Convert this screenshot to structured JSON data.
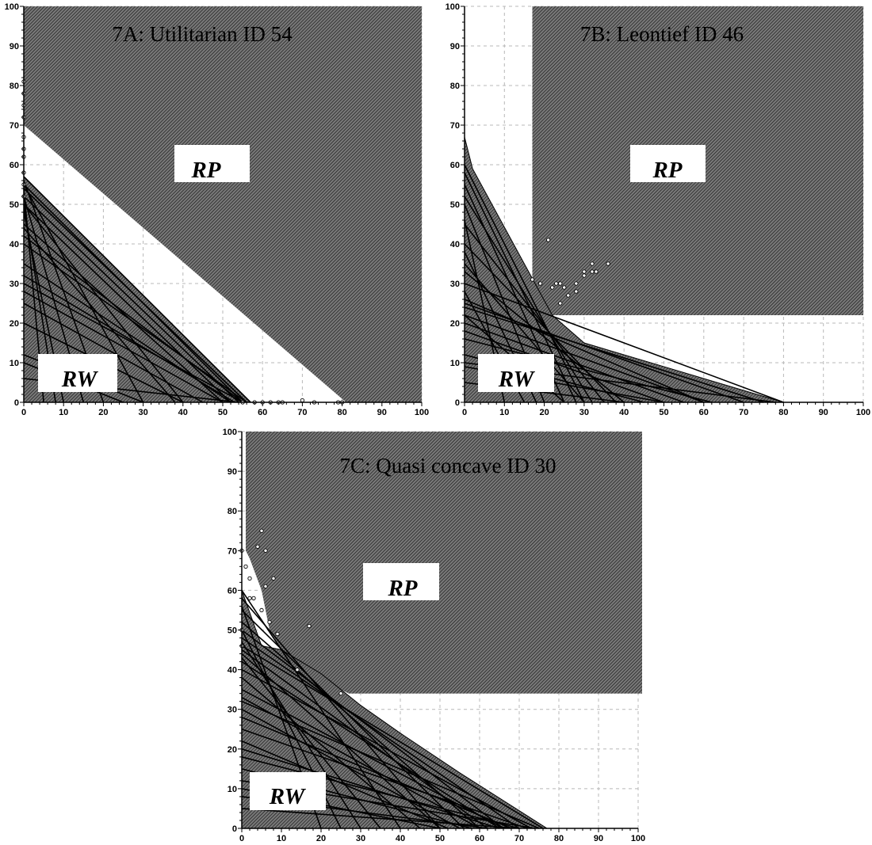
{
  "chart_data": [
    {
      "id": "7A",
      "type": "scatter",
      "title": "7A: Utilitarian ID 54",
      "xlim": [
        0,
        100
      ],
      "ylim": [
        0,
        100
      ],
      "xticks": [
        0,
        10,
        20,
        30,
        40,
        50,
        60,
        70,
        80,
        90,
        100
      ],
      "yticks": [
        0,
        10,
        20,
        30,
        40,
        50,
        60,
        70,
        80,
        90,
        100
      ],
      "grid": true,
      "rp_label": "RP",
      "rw_label": "RW",
      "rp_region": [
        [
          0,
          100
        ],
        [
          100,
          100
        ],
        [
          100,
          0
        ],
        [
          81,
          0
        ],
        [
          0,
          70
        ]
      ],
      "rw_region": [
        [
          0,
          0
        ],
        [
          0,
          57
        ],
        [
          57,
          0
        ]
      ],
      "budget_lines": [
        [
          0,
          57,
          57,
          0
        ],
        [
          0,
          55,
          55,
          0
        ],
        [
          0,
          54,
          56,
          0
        ],
        [
          0,
          52,
          54,
          0
        ],
        [
          0,
          50,
          52,
          0
        ],
        [
          0,
          56,
          20,
          0
        ],
        [
          0,
          52,
          15,
          0
        ],
        [
          0,
          48,
          10,
          0
        ],
        [
          0,
          55,
          30,
          0
        ],
        [
          0,
          50,
          40,
          0
        ],
        [
          0,
          45,
          50,
          0
        ],
        [
          0,
          42,
          55,
          0
        ],
        [
          0,
          35,
          52,
          0
        ],
        [
          0,
          32,
          53,
          0
        ],
        [
          0,
          30,
          55,
          0
        ],
        [
          0,
          28,
          50,
          0
        ],
        [
          0,
          25,
          45,
          0
        ],
        [
          0,
          20,
          40,
          0
        ],
        [
          0,
          12,
          30,
          0
        ],
        [
          0,
          10,
          25,
          0
        ],
        [
          0,
          6,
          54,
          0
        ],
        [
          0,
          54,
          5,
          0
        ],
        [
          0,
          50,
          8,
          0
        ],
        [
          0,
          44,
          38,
          0
        ],
        [
          0,
          40,
          56,
          0
        ]
      ],
      "points": [
        [
          0,
          81
        ],
        [
          0,
          78
        ],
        [
          0,
          75
        ],
        [
          0,
          72
        ],
        [
          0,
          67
        ],
        [
          0,
          64
        ],
        [
          0,
          62
        ],
        [
          0,
          58
        ],
        [
          0,
          55
        ],
        [
          0,
          52
        ],
        [
          55,
          0
        ],
        [
          58,
          0
        ],
        [
          60,
          0
        ],
        [
          62,
          0
        ],
        [
          64,
          0
        ],
        [
          65,
          0
        ],
        [
          70,
          0.5
        ],
        [
          73,
          0
        ],
        [
          79,
          0
        ],
        [
          80,
          0
        ]
      ]
    },
    {
      "id": "7B",
      "type": "scatter",
      "title": "7B: Leontief  ID 46",
      "xlim": [
        0,
        100
      ],
      "ylim": [
        0,
        100
      ],
      "xticks": [
        0,
        10,
        20,
        30,
        40,
        50,
        60,
        70,
        80,
        90,
        100
      ],
      "yticks": [
        0,
        10,
        20,
        30,
        40,
        50,
        60,
        70,
        80,
        90,
        100
      ],
      "grid": true,
      "rp_label": "RP",
      "rw_label": "RW",
      "rp_region": [
        [
          17,
          100
        ],
        [
          100,
          100
        ],
        [
          100,
          22
        ],
        [
          17,
          22
        ]
      ],
      "rw_region": [
        [
          0,
          0
        ],
        [
          0,
          67
        ],
        [
          2,
          59
        ],
        [
          22,
          22
        ],
        [
          30,
          15
        ],
        [
          80,
          0
        ]
      ],
      "budget_lines": [
        [
          0,
          60,
          30,
          0
        ],
        [
          0,
          58,
          28,
          0
        ],
        [
          0,
          55,
          25,
          0
        ],
        [
          0,
          52,
          32,
          0
        ],
        [
          0,
          50,
          20,
          0
        ],
        [
          0,
          45,
          35,
          0
        ],
        [
          0,
          40,
          38,
          0
        ],
        [
          0,
          35,
          30,
          0
        ],
        [
          0,
          33,
          40,
          0
        ],
        [
          0,
          26,
          60,
          0
        ],
        [
          0,
          25,
          70,
          0
        ],
        [
          0,
          24,
          75,
          0
        ],
        [
          0,
          22,
          60,
          0
        ],
        [
          0,
          20,
          55,
          0
        ],
        [
          0,
          18,
          50,
          0
        ],
        [
          0,
          16,
          62,
          0
        ],
        [
          0,
          12,
          45,
          0
        ],
        [
          0,
          10,
          78,
          0
        ],
        [
          0,
          9,
          50,
          0
        ],
        [
          0,
          5,
          40,
          0
        ],
        [
          0,
          30,
          80,
          0
        ],
        [
          0,
          28,
          15,
          0
        ],
        [
          0,
          22,
          25,
          0
        ],
        [
          0,
          46,
          10,
          0
        ],
        [
          0,
          38,
          18,
          0
        ]
      ],
      "points": [
        [
          17,
          31
        ],
        [
          19,
          30
        ],
        [
          21,
          41
        ],
        [
          22,
          29
        ],
        [
          23,
          30
        ],
        [
          24,
          30
        ],
        [
          24,
          25
        ],
        [
          25,
          29
        ],
        [
          26,
          27
        ],
        [
          28,
          28
        ],
        [
          28,
          30
        ],
        [
          30,
          32
        ],
        [
          30,
          33
        ],
        [
          32,
          33
        ],
        [
          32,
          35
        ],
        [
          33,
          33
        ],
        [
          36,
          35
        ]
      ]
    },
    {
      "id": "7C",
      "type": "scatter",
      "title": "7C: Quasi concave ID 30",
      "xlim": [
        0,
        100
      ],
      "ylim": [
        0,
        100
      ],
      "xticks": [
        0,
        10,
        20,
        30,
        40,
        50,
        60,
        70,
        80,
        90,
        100
      ],
      "yticks": [
        0,
        10,
        20,
        30,
        40,
        50,
        60,
        70,
        80,
        90,
        100
      ],
      "grid": true,
      "rp_label": "RP",
      "rw_label": "RW",
      "rp_region": [
        [
          1,
          100
        ],
        [
          101,
          100
        ],
        [
          101,
          34
        ],
        [
          27,
          34
        ],
        [
          15,
          40
        ],
        [
          10,
          45
        ],
        [
          7,
          50
        ],
        [
          5,
          60
        ],
        [
          2,
          68
        ],
        [
          1,
          70
        ]
      ],
      "rw_region": [
        [
          0,
          0
        ],
        [
          0,
          60
        ],
        [
          5,
          46
        ],
        [
          10,
          45
        ],
        [
          20,
          39
        ],
        [
          30,
          31
        ],
        [
          40,
          24
        ],
        [
          55,
          14
        ],
        [
          77,
          0
        ]
      ],
      "budget_lines": [
        [
          0,
          60,
          40,
          0
        ],
        [
          0,
          58,
          50,
          0
        ],
        [
          0,
          55,
          56,
          0
        ],
        [
          0,
          52,
          60,
          0
        ],
        [
          0,
          50,
          66,
          0
        ],
        [
          0,
          48,
          70,
          0
        ],
        [
          0,
          46,
          76,
          0
        ],
        [
          0,
          45,
          62,
          0
        ],
        [
          0,
          44,
          50,
          0
        ],
        [
          0,
          42,
          65,
          0
        ],
        [
          0,
          40,
          73,
          0
        ],
        [
          0,
          38,
          45,
          0
        ],
        [
          0,
          35,
          66,
          0
        ],
        [
          0,
          33,
          60,
          0
        ],
        [
          0,
          32,
          75,
          0
        ],
        [
          0,
          30,
          55,
          0
        ],
        [
          0,
          28,
          68,
          0
        ],
        [
          0,
          25,
          72,
          0
        ],
        [
          0,
          22,
          52,
          0
        ],
        [
          0,
          20,
          65,
          0
        ],
        [
          0,
          18,
          70,
          0
        ],
        [
          0,
          15,
          58,
          0
        ],
        [
          0,
          12,
          74,
          0
        ],
        [
          0,
          10,
          50,
          0
        ],
        [
          0,
          8,
          62,
          0
        ],
        [
          0,
          5,
          70,
          0
        ],
        [
          0,
          56,
          20,
          0
        ],
        [
          0,
          50,
          25,
          0
        ],
        [
          0,
          47,
          30,
          0
        ],
        [
          0,
          43,
          35,
          0
        ]
      ],
      "points": [
        [
          0,
          70
        ],
        [
          1,
          66
        ],
        [
          2,
          63
        ],
        [
          2,
          58
        ],
        [
          3,
          58
        ],
        [
          4,
          71
        ],
        [
          5,
          75
        ],
        [
          6,
          70
        ],
        [
          6,
          61
        ],
        [
          5,
          55
        ],
        [
          7,
          52
        ],
        [
          9,
          49
        ],
        [
          17,
          51
        ],
        [
          25,
          34
        ],
        [
          14,
          40
        ],
        [
          8,
          63
        ],
        [
          0,
          50
        ],
        [
          0,
          46
        ]
      ]
    }
  ]
}
